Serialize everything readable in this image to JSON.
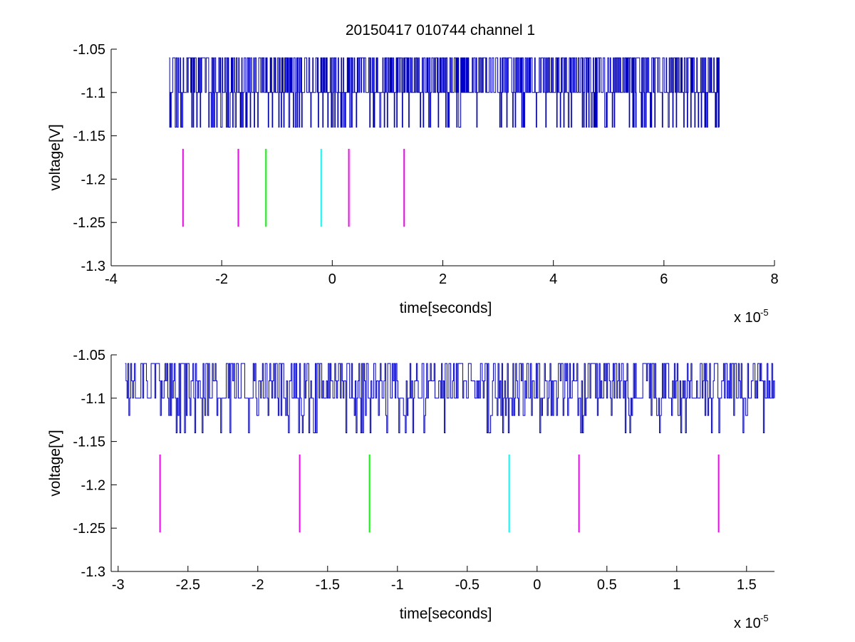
{
  "figure": {
    "title": "20150417 010744 channel 1",
    "background": "#ffffff"
  },
  "chart_data": [
    {
      "type": "line",
      "panel": "top",
      "title": "20150417 010744 channel 1",
      "xlabel": "time[seconds]",
      "ylabel": "voltage[V]",
      "x_multiplier_label": "x 10",
      "x_multiplier_exponent": "-5",
      "xlim": [
        -4,
        8
      ],
      "ylim": [
        -1.3,
        -1.05
      ],
      "xticks": [
        -4,
        -2,
        0,
        2,
        4,
        6,
        8
      ],
      "xtick_labels": [
        "-4",
        "-2",
        "0",
        "2",
        "4",
        "6",
        "8"
      ],
      "yticks": [
        -1.3,
        -1.25,
        -1.2,
        -1.15,
        -1.1,
        -1.05
      ],
      "ytick_labels": [
        "-1.3",
        "-1.25",
        "-1.2",
        "-1.15",
        "-1.1",
        "-1.05"
      ],
      "grid": false,
      "series": [
        {
          "kind": "signal",
          "color": "#0000cc",
          "x_range": [
            -2.95,
            7.0
          ],
          "levels": [
            -1.06,
            -1.1,
            -1.14
          ],
          "baseline": -1.1
        }
      ],
      "markers": [
        {
          "x": -2.7,
          "y": [
            -1.255,
            -1.165
          ],
          "color": "#ff00ff"
        },
        {
          "x": -1.7,
          "y": [
            -1.255,
            -1.165
          ],
          "color": "#ff00ff"
        },
        {
          "x": -1.2,
          "y": [
            -1.255,
            -1.165
          ],
          "color": "#00ff00"
        },
        {
          "x": -0.2,
          "y": [
            -1.255,
            -1.165
          ],
          "color": "#00ffff"
        },
        {
          "x": 0.3,
          "y": [
            -1.255,
            -1.165
          ],
          "color": "#ff00ff"
        },
        {
          "x": 1.3,
          "y": [
            -1.255,
            -1.165
          ],
          "color": "#ff00ff"
        }
      ]
    },
    {
      "type": "line",
      "panel": "bottom",
      "title": "",
      "xlabel": "time[seconds]",
      "ylabel": "voltage[V]",
      "x_multiplier_label": "x 10",
      "x_multiplier_exponent": "-5",
      "xlim": [
        -3.05,
        1.7
      ],
      "ylim": [
        -1.3,
        -1.05
      ],
      "xticks": [
        -3,
        -2.5,
        -2,
        -1.5,
        -1,
        -0.5,
        0,
        0.5,
        1,
        1.5
      ],
      "xtick_labels": [
        "-3",
        "-2.5",
        "-2",
        "-1.5",
        "-1",
        "-0.5",
        "0",
        "0.5",
        "1",
        "1.5"
      ],
      "yticks": [
        -1.3,
        -1.25,
        -1.2,
        -1.15,
        -1.1,
        -1.05
      ],
      "ytick_labels": [
        "-1.3",
        "-1.25",
        "-1.2",
        "-1.15",
        "-1.1",
        "-1.05"
      ],
      "grid": false,
      "series": [
        {
          "kind": "signal",
          "color": "#0000cc",
          "x_range": [
            -2.95,
            1.7
          ],
          "levels": [
            -1.06,
            -1.08,
            -1.1,
            -1.12,
            -1.14
          ],
          "baseline": -1.1
        }
      ],
      "markers": [
        {
          "x": -2.7,
          "y": [
            -1.255,
            -1.165
          ],
          "color": "#ff00ff"
        },
        {
          "x": -1.7,
          "y": [
            -1.255,
            -1.165
          ],
          "color": "#ff00ff"
        },
        {
          "x": -1.2,
          "y": [
            -1.255,
            -1.165
          ],
          "color": "#00ff00"
        },
        {
          "x": -0.2,
          "y": [
            -1.255,
            -1.165
          ],
          "color": "#00ffff"
        },
        {
          "x": 0.3,
          "y": [
            -1.255,
            -1.165
          ],
          "color": "#ff00ff"
        },
        {
          "x": 1.3,
          "y": [
            -1.255,
            -1.165
          ],
          "color": "#ff00ff"
        }
      ]
    }
  ]
}
